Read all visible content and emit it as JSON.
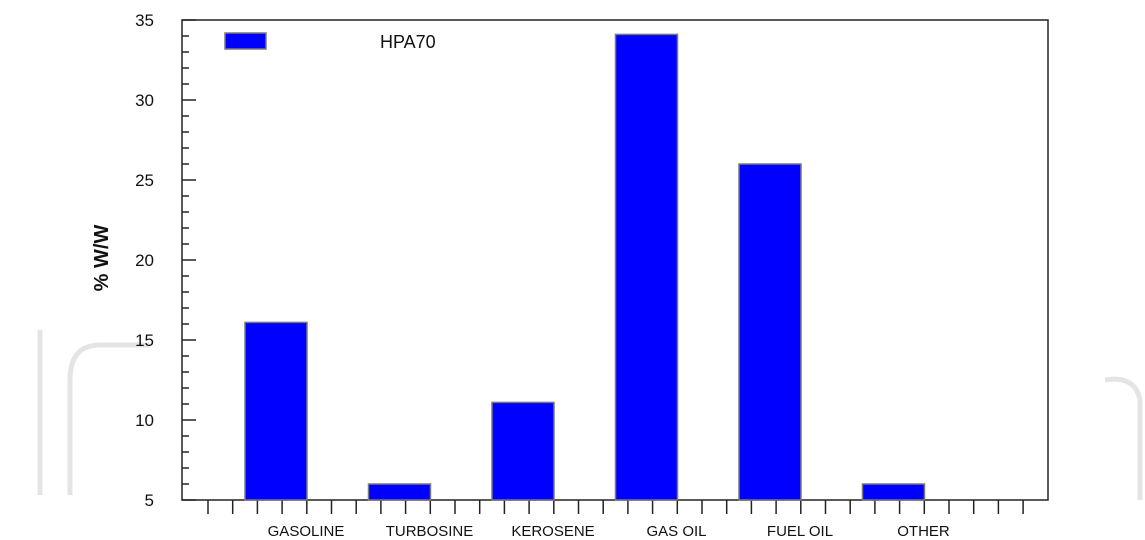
{
  "chart_data": {
    "type": "bar",
    "categories": [
      "GASOLINE",
      "TURBOSINE",
      "KEROSENE",
      "GAS OIL",
      "FUEL OIL",
      "OTHER"
    ],
    "series": [
      {
        "name": "HPA70",
        "values": [
          16.1,
          6.0,
          11.1,
          34.1,
          26.0,
          6.0
        ]
      }
    ],
    "ylabel": "% W/W",
    "xlabel": "",
    "ylim": [
      5,
      35
    ],
    "yticks": [
      5,
      10,
      15,
      20,
      25,
      30,
      35
    ],
    "legend_position": "top-left",
    "grid": false,
    "bar_color": "#0000ff",
    "bar_edge_color": "#7a7a7a"
  }
}
